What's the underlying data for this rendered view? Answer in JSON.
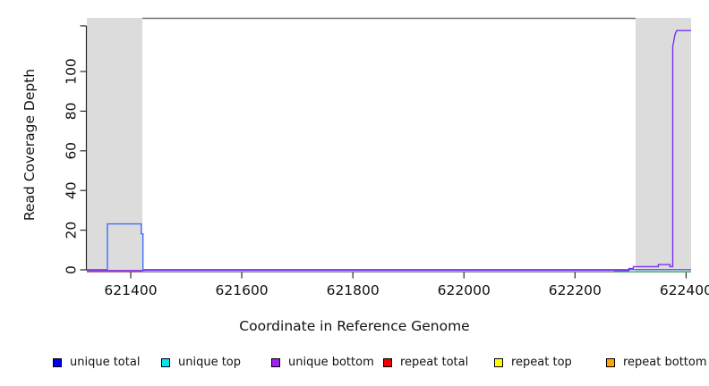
{
  "chart_data": {
    "type": "line",
    "title": "",
    "xlabel": "Coordinate in Reference Genome",
    "ylabel": "Read Coverage Depth",
    "x_ticks": [
      621400,
      621600,
      621800,
      622000,
      622200,
      622400
    ],
    "y_ticks": [
      0,
      20,
      40,
      60,
      80,
      100
    ],
    "y_axis_end_tick": 123,
    "xlim": [
      621321,
      622409
    ],
    "ylim": [
      0,
      127
    ],
    "grid": false,
    "legend_position": "bottom",
    "plot_bg": "#ffffff",
    "repeat_region_color": "#DCDCDC",
    "frame_line_color": "#6F6F6F",
    "repeat_regions": [
      {
        "x1": 621321,
        "x2": 621421
      },
      {
        "x1": 622309,
        "x2": 622409
      }
    ],
    "series": [
      {
        "name": "unique total",
        "legend_color": "#0000EE",
        "line_color": "#3B71F8",
        "points": [
          [
            621321,
            0
          ],
          [
            621358,
            0
          ],
          [
            621358,
            23
          ],
          [
            621419,
            23
          ],
          [
            621419,
            18
          ],
          [
            621422,
            18
          ],
          [
            621422,
            0
          ],
          [
            622409,
            0
          ]
        ]
      },
      {
        "name": "unique top",
        "legend_color": "#00E5EE",
        "line_color": "#00E5EE",
        "points": []
      },
      {
        "name": "unique bottom",
        "legend_color": "#A020F0",
        "line_color": "#7B2FF0",
        "points": [
          [
            621321,
            0
          ],
          [
            622297,
            0
          ],
          [
            622297,
            1
          ],
          [
            622305,
            1
          ],
          [
            622305,
            2
          ],
          [
            622350,
            2
          ],
          [
            622350,
            3
          ],
          [
            622371,
            3
          ],
          [
            622371,
            2
          ],
          [
            622376,
            2
          ],
          [
            622376,
            113
          ],
          [
            622378,
            116
          ],
          [
            622380,
            119
          ],
          [
            622383,
            121
          ],
          [
            622409,
            121
          ]
        ]
      },
      {
        "name": "repeat total",
        "legend_color": "#EE0000",
        "line_color": "#E8495E",
        "points": [
          [
            621321,
            0
          ],
          [
            621422,
            0
          ]
        ]
      },
      {
        "name": "repeat top",
        "legend_color": "#FFFF00",
        "line_color": "#FFFF00",
        "points": []
      },
      {
        "name": "repeat bottom",
        "legend_color": "#FFA500",
        "line_color": "#FFA500",
        "points": []
      }
    ],
    "green_overlap_segment": {
      "color": "#46B85C",
      "x1": 622270,
      "x2": 622409,
      "value": 0
    }
  }
}
